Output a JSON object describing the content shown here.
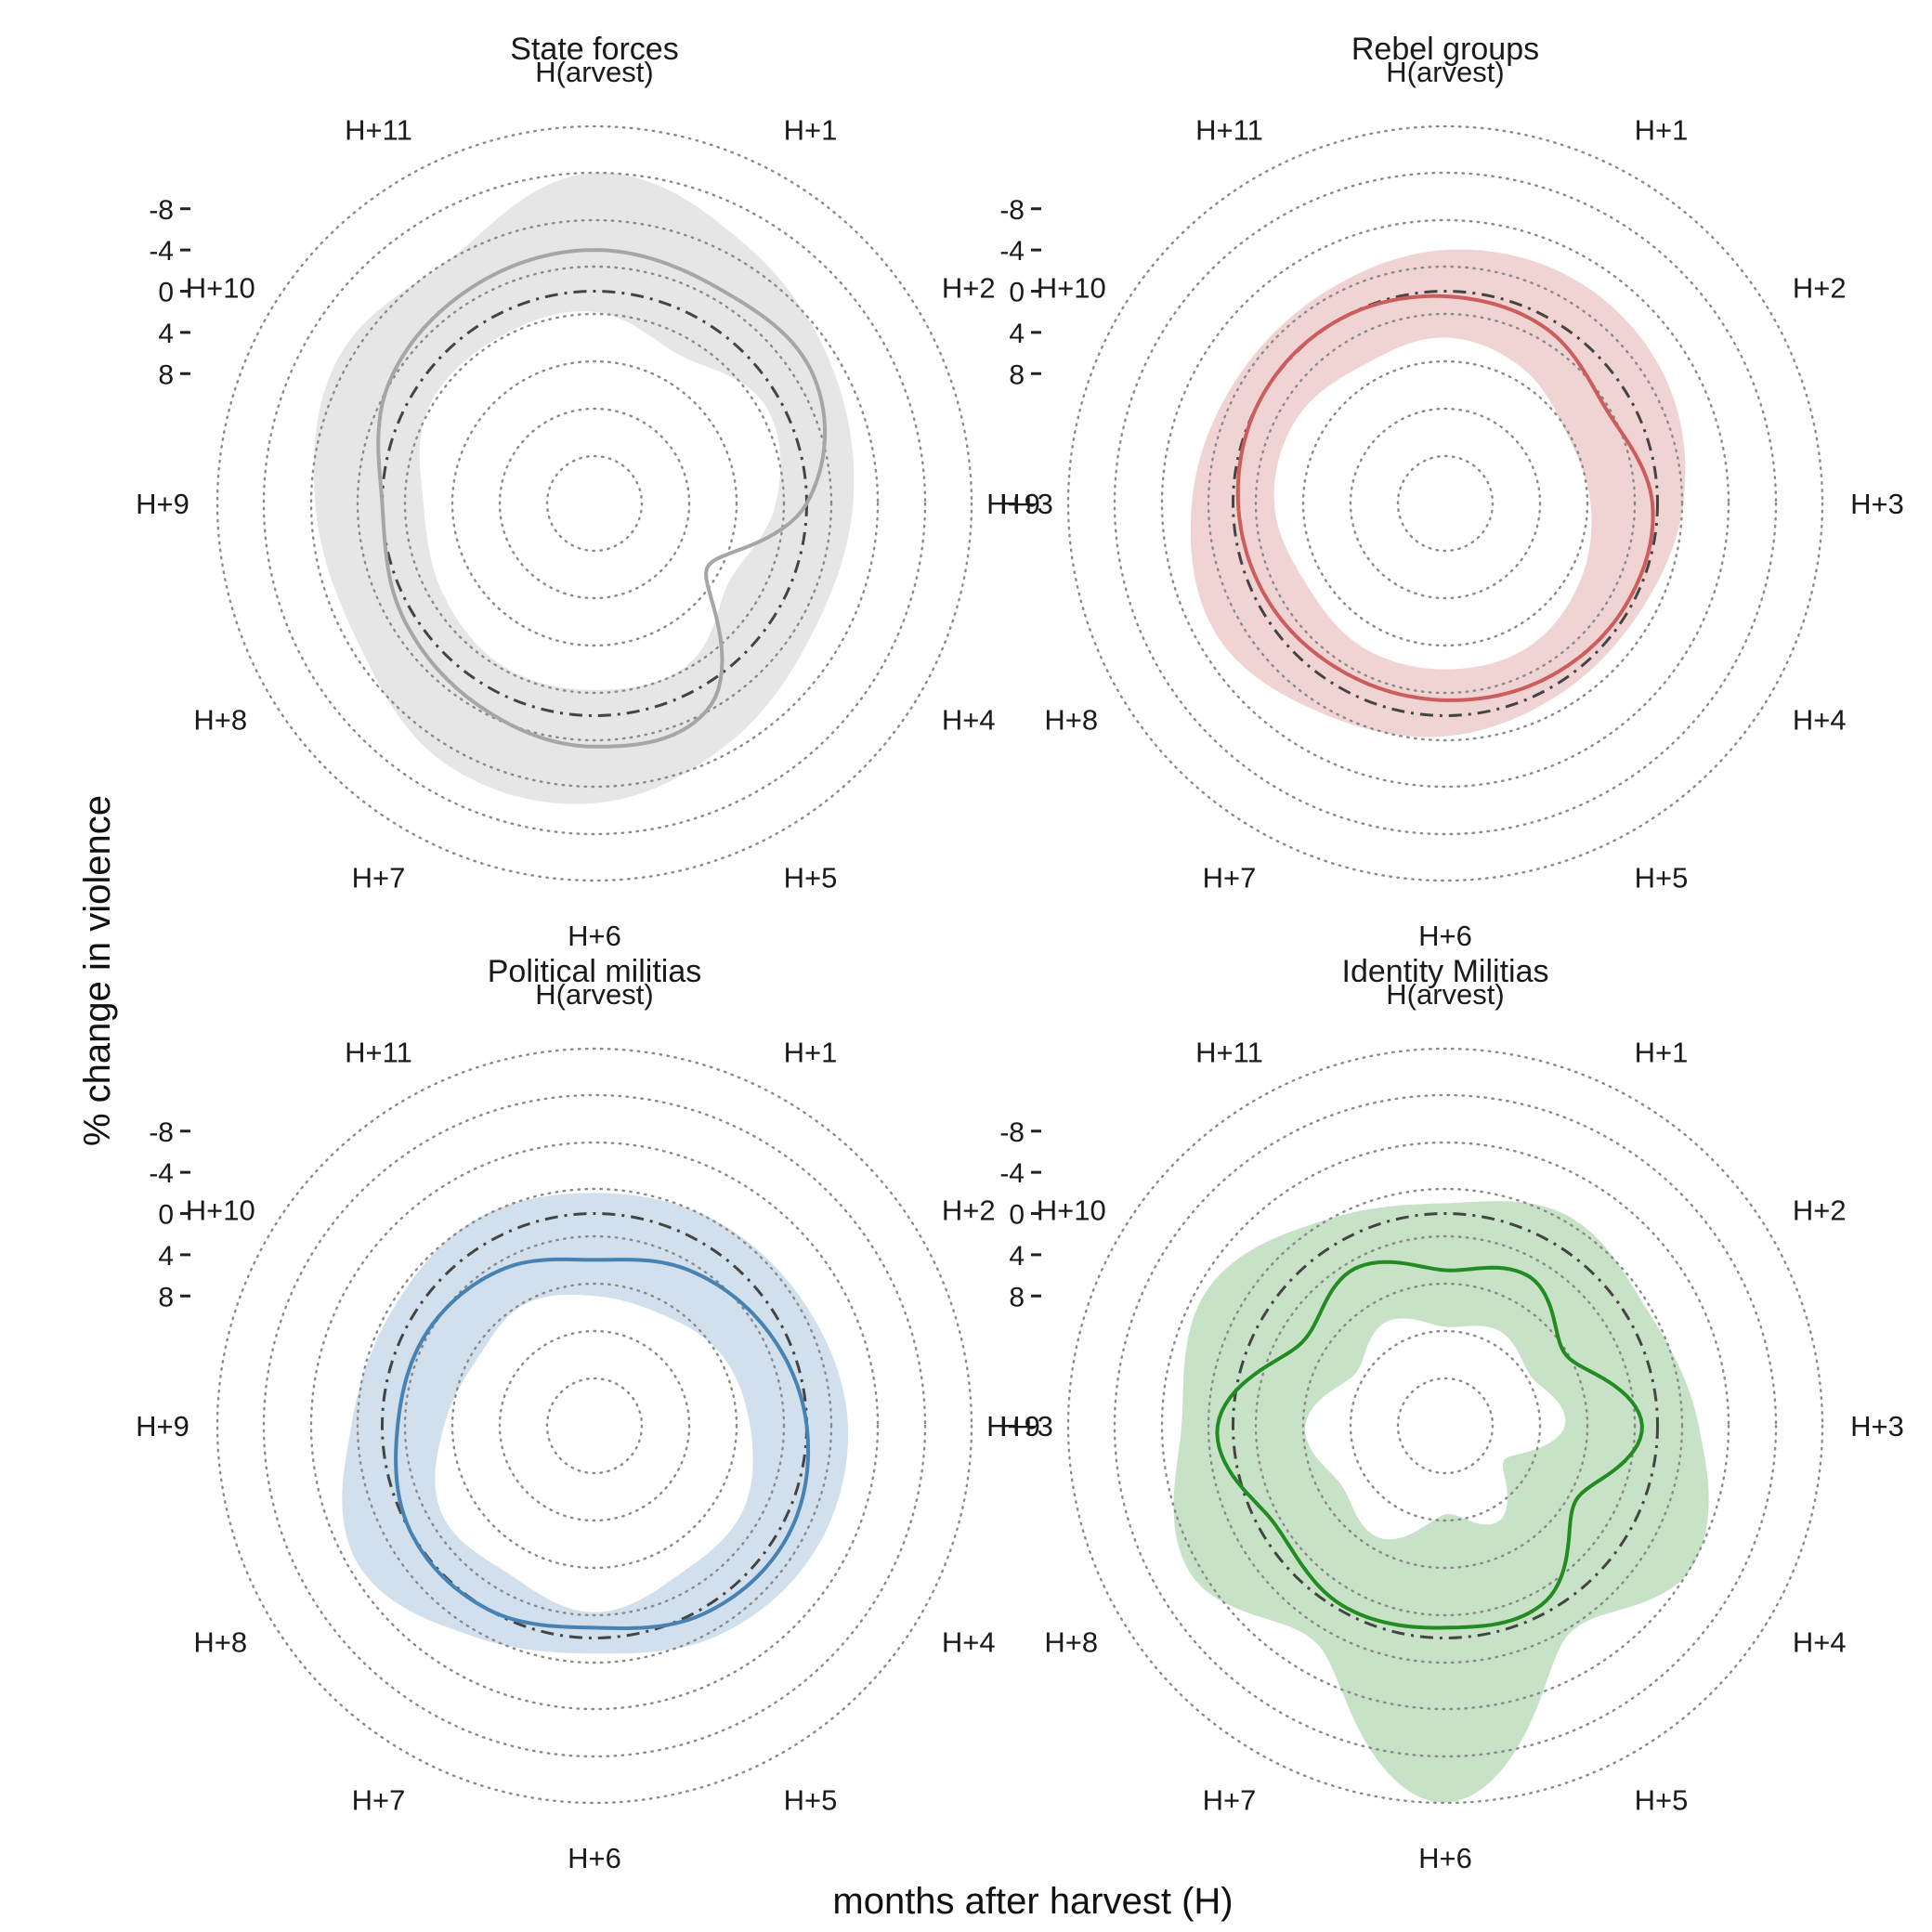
{
  "figure": {
    "xlabel": "months after harvest (H)",
    "ylabel": "% change in violence"
  },
  "chart_data": [
    {
      "type": "line",
      "coord": "polar",
      "title": "State forces",
      "color": "#a6a6a6",
      "band_color": "#e6e6e6",
      "months": [
        "H(arvest)",
        "H+1",
        "H+2",
        "H+3",
        "H+4",
        "H+5",
        "H+6",
        "H+7",
        "H+8",
        "H+9",
        "H+10",
        "H+11"
      ],
      "radial_ticks": [
        8,
        4,
        0,
        -4,
        -8
      ],
      "ylim": [
        -16,
        16
      ],
      "mean": [
        -4,
        -3.5,
        -4,
        0,
        8,
        -2,
        -3,
        -2,
        -1,
        0,
        -2.5,
        -3.5
      ],
      "lower": [
        -11.5,
        -8.5,
        -6,
        -4.5,
        -4,
        -6,
        -8.5,
        -8.5,
        -6,
        -6.5,
        -8,
        -7
      ],
      "upper": [
        2,
        4,
        1.5,
        3,
        5.5,
        2.5,
        2.5,
        2.5,
        3.5,
        4,
        2,
        2
      ]
    },
    {
      "type": "line",
      "coord": "polar",
      "title": "Rebel groups",
      "color": "#cd5c5c",
      "band_color": "#f0d4d4",
      "months": [
        "H(arvest)",
        "H+1",
        "H+2",
        "H+3",
        "H+4",
        "H+5",
        "H+6",
        "H+7",
        "H+8",
        "H+9",
        "H+10",
        "H+11"
      ],
      "radial_ticks": [
        8,
        4,
        0,
        -4,
        -8
      ],
      "ylim": [
        -16,
        16
      ],
      "mean": [
        0.5,
        1,
        2.5,
        0.5,
        0.5,
        1,
        1.5,
        1.5,
        1,
        0.5,
        0,
        0
      ],
      "lower": [
        -4,
        -4.5,
        -4,
        -2.5,
        -1,
        -1,
        -2,
        -3,
        -5,
        -4,
        -3,
        -3
      ],
      "upper": [
        4.5,
        5.5,
        7,
        6.5,
        5.5,
        4.5,
        4.5,
        4.5,
        5,
        4,
        4,
        5
      ]
    },
    {
      "type": "line",
      "coord": "polar",
      "title": "Political militias",
      "color": "#4682b4",
      "band_color": "#d2dfec",
      "months": [
        "H(arvest)",
        "H+1",
        "H+2",
        "H+3",
        "H+4",
        "H+5",
        "H+6",
        "H+7",
        "H+8",
        "H+9",
        "H+10",
        "H+11"
      ],
      "radial_ticks": [
        8,
        4,
        0,
        -4,
        -8
      ],
      "ylim": [
        -16,
        16
      ],
      "mean": [
        4.5,
        3,
        1.5,
        0,
        -1,
        -0.5,
        1,
        0,
        0,
        1.5,
        2,
        3
      ],
      "lower": [
        -2,
        -2.5,
        -3,
        -4,
        -4,
        -3,
        -1.5,
        -3,
        -6,
        -3,
        -2,
        -2.5
      ],
      "upper": [
        8,
        8,
        6.5,
        5.5,
        4,
        4,
        2.5,
        4,
        3.5,
        6,
        7.5,
        7
      ]
    },
    {
      "type": "line",
      "coord": "polar",
      "title": "Identity Militias",
      "color": "#228b22",
      "band_color": "#c8e2c8",
      "months": [
        "H(arvest)",
        "H+1",
        "H+2",
        "H+3",
        "H+4",
        "H+5",
        "H+6",
        "H+7",
        "H+8",
        "H+9",
        "H+10",
        "H+11"
      ],
      "radial_ticks": [
        8,
        4,
        0,
        -4,
        -8
      ],
      "ylim": [
        -16,
        16
      ],
      "mean": [
        5.5,
        4,
        7,
        1.5,
        6,
        1,
        1,
        0.5,
        1.5,
        -1.5,
        4.5,
        3
      ],
      "lower": [
        -1,
        -3,
        -2,
        -4,
        -7,
        -3,
        -16,
        -4,
        -8,
        -5,
        -6,
        -2.5
      ],
      "upper": [
        11,
        10,
        11,
        9,
        14,
        10,
        12,
        8,
        9,
        7,
        10.5,
        9
      ]
    }
  ]
}
